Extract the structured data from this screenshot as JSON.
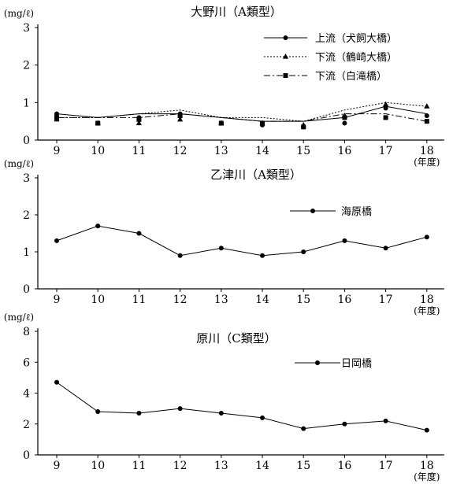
{
  "chart_data": [
    {
      "type": "line",
      "title": "大野川（A類型）",
      "ylabel": "(mg/ℓ)",
      "xlabel": "(年度)",
      "categories": [
        "9",
        "10",
        "11",
        "12",
        "13",
        "14",
        "15",
        "16",
        "17",
        "18"
      ],
      "ylim": [
        0,
        3
      ],
      "yticks": [
        "0",
        "1",
        "2",
        "3"
      ],
      "legend": "top-right",
      "series": [
        {
          "name": "上流（犬飼大橋）",
          "marker": "circle",
          "dash": "solid",
          "values": [
            0.7,
            0.6,
            0.7,
            0.7,
            0.6,
            0.5,
            0.5,
            0.6,
            0.9,
            0.7
          ]
        },
        {
          "name": "下流（鶴崎大橋）",
          "marker": "triangle",
          "dash": "dotted",
          "values": [
            0.6,
            0.6,
            0.7,
            0.8,
            0.6,
            0.6,
            0.5,
            0.8,
            1.0,
            0.9
          ]
        },
        {
          "name": "下流（白滝橋）",
          "marker": "square",
          "dash": "dashdot",
          "values": [
            0.6,
            0.6,
            0.6,
            0.7,
            0.6,
            0.5,
            0.5,
            0.7,
            0.7,
            0.5
          ]
        }
      ],
      "points": [
        [
          {
            "y": 0.7
          },
          {
            "y": 0.45
          },
          {
            "y": 0.6
          },
          {
            "y": 0.7
          },
          {
            "y": 0.45
          },
          {
            "y": 0.4
          },
          {
            "y": 0.35
          },
          {
            "y": 0.45
          },
          {
            "y": 0.85
          },
          {
            "y": 0.65
          }
        ],
        [
          {
            "y": 0.55
          },
          {
            "y": 0.45
          },
          {
            "y": 0.45
          },
          {
            "y": 0.55
          },
          {
            "y": 0.45
          },
          {
            "y": 0.45
          },
          {
            "y": 0.4
          },
          {
            "y": 0.65
          },
          {
            "y": 0.95
          },
          {
            "y": 0.9
          }
        ],
        [
          {
            "y": 0.6
          },
          {
            "y": 0.45
          },
          {
            "y": 0.55
          },
          {
            "y": 0.65
          },
          {
            "y": 0.45
          },
          {
            "y": 0.45
          },
          {
            "y": 0.35
          },
          {
            "y": 0.6
          },
          {
            "y": 0.6
          },
          {
            "y": 0.5
          }
        ]
      ]
    },
    {
      "type": "line",
      "title": "乙津川（A類型）",
      "ylabel": "(mg/ℓ)",
      "xlabel": "(年度)",
      "categories": [
        "9",
        "10",
        "11",
        "12",
        "13",
        "14",
        "15",
        "16",
        "17",
        "18"
      ],
      "ylim": [
        0,
        3
      ],
      "yticks": [
        "0",
        "1",
        "2",
        "3"
      ],
      "legend": "top-right",
      "series": [
        {
          "name": "海原橋",
          "marker": "circle",
          "dash": "solid",
          "values": [
            1.3,
            1.7,
            1.5,
            0.9,
            1.1,
            0.9,
            1.0,
            1.3,
            1.1,
            1.4
          ]
        }
      ]
    },
    {
      "type": "line",
      "title": "原川（C類型）",
      "ylabel": "(mg/ℓ)",
      "xlabel": "(年度)",
      "categories": [
        "9",
        "10",
        "11",
        "12",
        "13",
        "14",
        "15",
        "16",
        "17",
        "18"
      ],
      "ylim": [
        0,
        8
      ],
      "yticks": [
        "0",
        "2",
        "4",
        "6",
        "8"
      ],
      "legend": "top-right",
      "series": [
        {
          "name": "日岡橋",
          "marker": "circle",
          "dash": "solid",
          "values": [
            4.7,
            2.8,
            2.7,
            3.0,
            2.7,
            2.4,
            1.7,
            2.0,
            2.2,
            1.6
          ]
        }
      ]
    }
  ]
}
